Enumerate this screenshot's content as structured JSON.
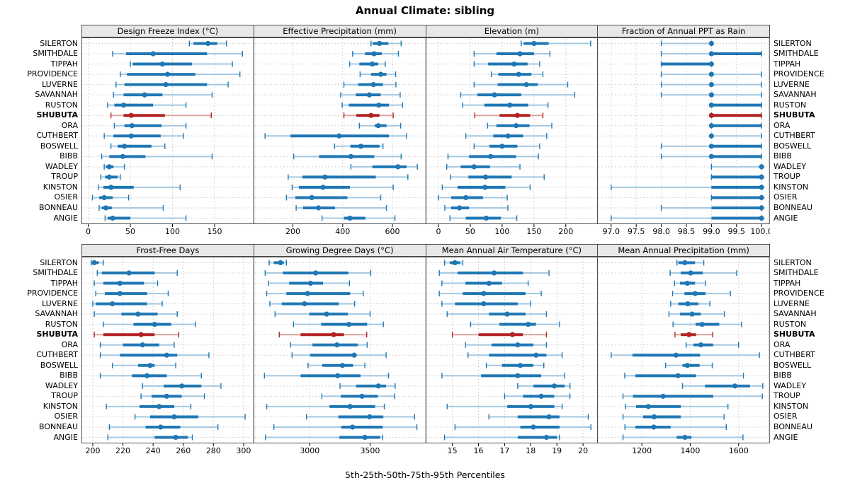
{
  "title": "Annual Climate: sibling",
  "caption": "5th-25th-50th-75th-95th Percentiles",
  "highlighted_row": "SHUBUTA",
  "locations": [
    "SILERTON",
    "SMITHDALE",
    "TIPPAH",
    "PROVIDENCE",
    "LUVERNE",
    "SAVANNAH",
    "RUSTON",
    "SHUBUTA",
    "ORA",
    "CUTHBERT",
    "BOSWELL",
    "BIBB",
    "WADLEY",
    "TROUP",
    "KINSTON",
    "OSIER",
    "BONNEAU",
    "ANGIE"
  ],
  "colors": {
    "series_blue": "#1f77b4",
    "series_blue_light": "#a5c8e1",
    "highlight_red": "#b22222",
    "highlight_red_light": "#dca49e",
    "strip_bg": "#e8e8e8",
    "panel_border": "#4d4d4d",
    "grid": "#c8c8c8",
    "background": "#ffffff"
  },
  "chart_data": {
    "type": "scatter",
    "variant": "trellis dot plot of 5-25-50-75-95 percentiles, one horizontal line per location, 2x4 panel grid, SHUBUTA highlighted in red",
    "percentiles": [
      5,
      25,
      50,
      75,
      95
    ],
    "grid": "dotted, on",
    "legend_position": "none",
    "panels": [
      {
        "title": "Design Freeze Index (°C)",
        "row": 0,
        "col": 0,
        "xlim": [
          -8,
          196
        ],
        "xticks": [
          0,
          50,
          100,
          150
        ],
        "xtick_labels": [
          "0",
          "50",
          "100",
          "150"
        ],
        "values": [
          [
            120,
            125,
            142,
            153,
            164
          ],
          [
            29,
            45,
            77,
            141,
            183
          ],
          [
            50,
            53,
            88,
            123,
            171
          ],
          [
            38,
            46,
            94,
            127,
            180
          ],
          [
            33,
            43,
            92,
            141,
            166
          ],
          [
            30,
            42,
            67,
            88,
            147
          ],
          [
            23,
            31,
            42,
            77,
            116
          ],
          [
            27,
            42,
            51,
            91,
            146
          ],
          [
            31,
            43,
            52,
            87,
            116
          ],
          [
            19,
            30,
            51,
            86,
            113
          ],
          [
            27,
            35,
            43,
            75,
            91
          ],
          [
            16,
            25,
            41,
            68,
            147
          ],
          [
            19,
            21,
            25,
            30,
            43
          ],
          [
            15,
            20,
            25,
            35,
            38
          ],
          [
            12,
            18,
            27,
            54,
            109
          ],
          [
            5,
            13,
            19,
            29,
            48
          ],
          [
            13,
            16,
            21,
            28,
            89
          ],
          [
            20,
            23,
            29,
            50,
            116
          ]
        ]
      },
      {
        "title": "Effective Precipitation (mm)",
        "row": 0,
        "col": 1,
        "xlim": [
          42,
          733
        ],
        "xticks": [
          200,
          400,
          600
        ],
        "xtick_labels": [
          "200",
          "400",
          "600"
        ],
        "values": [
          [
            514,
            521,
            548,
            584,
            635
          ],
          [
            440,
            490,
            526,
            557,
            624
          ],
          [
            428,
            467,
            519,
            543,
            571
          ],
          [
            470,
            514,
            553,
            576,
            613
          ],
          [
            405,
            462,
            524,
            562,
            614
          ],
          [
            392,
            453,
            507,
            553,
            631
          ],
          [
            398,
            425,
            545,
            586,
            641
          ],
          [
            405,
            455,
            514,
            548,
            603
          ],
          [
            467,
            529,
            543,
            576,
            633
          ],
          [
            88,
            190,
            386,
            586,
            657
          ],
          [
            367,
            431,
            473,
            548,
            562
          ],
          [
            203,
            305,
            433,
            527,
            635
          ],
          [
            433,
            519,
            622,
            657,
            700
          ],
          [
            181,
            238,
            329,
            533,
            662
          ],
          [
            197,
            224,
            321,
            429,
            603
          ],
          [
            174,
            210,
            276,
            419,
            553
          ],
          [
            213,
            241,
            303,
            369,
            576
          ],
          [
            317,
            405,
            429,
            491,
            610
          ]
        ]
      },
      {
        "title": "Elevation (m)",
        "row": 0,
        "col": 2,
        "xlim": [
          -20,
          250
        ],
        "xticks": [
          0,
          50,
          100,
          150,
          200
        ],
        "xtick_labels": [
          "0",
          "50",
          "100",
          "150",
          "200"
        ],
        "values": [
          [
            130,
            134,
            150,
            173,
            239
          ],
          [
            56,
            91,
            128,
            150,
            175
          ],
          [
            56,
            78,
            119,
            140,
            159
          ],
          [
            83,
            94,
            126,
            146,
            164
          ],
          [
            56,
            93,
            138,
            156,
            203
          ],
          [
            35,
            61,
            88,
            130,
            214
          ],
          [
            38,
            72,
            112,
            141,
            172
          ],
          [
            57,
            96,
            124,
            144,
            164
          ],
          [
            77,
            91,
            122,
            143,
            178
          ],
          [
            43,
            86,
            109,
            133,
            170
          ],
          [
            56,
            80,
            100,
            124,
            159
          ],
          [
            15,
            48,
            82,
            122,
            157
          ],
          [
            13,
            35,
            56,
            81,
            128
          ],
          [
            19,
            47,
            74,
            115,
            166
          ],
          [
            6,
            30,
            73,
            105,
            144
          ],
          [
            0,
            20,
            43,
            70,
            108
          ],
          [
            10,
            20,
            33,
            48,
            109
          ],
          [
            18,
            43,
            75,
            98,
            123
          ]
        ]
      },
      {
        "title": "Fraction of Annual PPT as Rain",
        "row": 0,
        "col": 3,
        "xlim": [
          96.72,
          100.15
        ],
        "xticks": [
          97.0,
          97.5,
          98.0,
          98.5,
          99.0,
          99.5,
          100.0
        ],
        "xtick_labels": [
          "97.0",
          "97.5",
          "98.0",
          "98.5",
          "99.0",
          "99.5",
          "100.0"
        ],
        "values": [
          [
            98,
            99,
            99,
            99,
            99
          ],
          [
            98,
            99,
            99,
            100,
            100
          ],
          [
            98,
            98,
            99,
            99,
            99
          ],
          [
            98,
            99,
            99,
            99,
            100
          ],
          [
            98,
            99,
            99,
            99,
            100
          ],
          [
            98,
            99,
            99,
            99,
            100
          ],
          [
            99,
            99,
            99,
            100,
            100
          ],
          [
            99,
            99,
            99,
            100,
            100
          ],
          [
            99,
            99,
            99,
            100,
            100
          ],
          [
            99,
            99,
            99,
            99,
            100
          ],
          [
            98,
            99,
            99,
            100,
            100
          ],
          [
            98,
            99,
            99,
            100,
            100
          ],
          [
            99,
            100,
            100,
            100,
            100
          ],
          [
            99,
            99,
            100,
            100,
            100
          ],
          [
            97,
            99,
            100,
            100,
            100
          ],
          [
            99,
            99,
            100,
            100,
            100
          ],
          [
            98,
            99,
            100,
            100,
            100
          ],
          [
            97,
            99,
            100,
            100,
            100
          ]
        ]
      },
      {
        "title": "Frost-Free Days",
        "row": 1,
        "col": 0,
        "xlim": [
          192.5,
          306.5
        ],
        "xticks": [
          200,
          220,
          240,
          260,
          280,
          300
        ],
        "xtick_labels": [
          "200",
          "220",
          "240",
          "260",
          "280",
          "300"
        ],
        "values": [
          [
            199,
            200,
            201,
            204,
            207
          ],
          [
            203,
            206,
            224,
            241,
            256
          ],
          [
            201,
            207,
            218,
            234,
            243
          ],
          [
            202,
            208,
            218,
            236,
            250
          ],
          [
            200,
            202,
            213,
            236,
            246
          ],
          [
            201,
            219,
            230,
            243,
            256
          ],
          [
            207,
            227,
            241,
            252,
            268
          ],
          [
            201,
            207,
            232,
            241,
            257
          ],
          [
            205,
            220,
            233,
            244,
            254
          ],
          [
            205,
            218,
            249,
            256,
            277
          ],
          [
            213,
            230,
            238,
            241,
            255
          ],
          [
            205,
            226,
            236,
            249,
            272
          ],
          [
            233,
            247,
            259,
            272,
            285
          ],
          [
            232,
            239,
            249,
            259,
            274
          ],
          [
            209,
            231,
            244,
            254,
            265
          ],
          [
            228,
            238,
            254,
            270,
            301
          ],
          [
            211,
            235,
            245,
            258,
            283
          ],
          [
            210,
            241,
            255,
            263,
            266
          ]
        ]
      },
      {
        "title": "Growing Degree Days (°C)",
        "row": 1,
        "col": 1,
        "xlim": [
          2534,
          3960
        ],
        "xticks": [
          3000,
          3500
        ],
        "xtick_labels": [
          "3000",
          "3500"
        ],
        "values": [
          [
            2663,
            2702,
            2757,
            2784,
            2806
          ],
          [
            2630,
            2777,
            3049,
            3320,
            3506
          ],
          [
            2657,
            2829,
            3006,
            3110,
            3329
          ],
          [
            2643,
            2806,
            2982,
            3335,
            3443
          ],
          [
            2669,
            2767,
            2957,
            3241,
            3372
          ],
          [
            2712,
            2996,
            3139,
            3316,
            3500
          ],
          [
            2865,
            3094,
            3325,
            3476,
            3610
          ],
          [
            2747,
            2924,
            3198,
            3284,
            3472
          ],
          [
            2839,
            3022,
            3225,
            3398,
            3476
          ],
          [
            2853,
            3002,
            3369,
            3384,
            3633
          ],
          [
            2986,
            3104,
            3271,
            3359,
            3457
          ],
          [
            2624,
            2924,
            3231,
            3421,
            3653
          ],
          [
            3251,
            3384,
            3569,
            3633,
            3708
          ],
          [
            3100,
            3257,
            3433,
            3565,
            3702
          ],
          [
            2643,
            3163,
            3333,
            3541,
            3618
          ],
          [
            2973,
            3237,
            3496,
            3610,
            3869
          ],
          [
            2702,
            3261,
            3355,
            3604,
            3888
          ],
          [
            2633,
            3245,
            3457,
            3584,
            3604
          ]
        ]
      },
      {
        "title": "Mean Annual Air Temperature (°C)",
        "row": 1,
        "col": 2,
        "xlim": [
          13.98,
          20.56
        ],
        "xticks": [
          15,
          16,
          17,
          18,
          19,
          20
        ],
        "xtick_labels": [
          "15",
          "16",
          "17",
          "18",
          "19",
          "20"
        ],
        "values": [
          [
            14.7,
            14.9,
            15.1,
            15.3,
            15.4
          ],
          [
            14.5,
            15.2,
            16.6,
            17.7,
            18.7
          ],
          [
            14.6,
            15.5,
            16.4,
            16.9,
            17.9
          ],
          [
            14.5,
            15.4,
            16.2,
            17.8,
            18.4
          ],
          [
            14.6,
            15.1,
            16.2,
            17.5,
            18.0
          ],
          [
            14.8,
            16.4,
            17.1,
            17.8,
            18.6
          ],
          [
            15.7,
            16.8,
            17.9,
            18.2,
            19.1
          ],
          [
            15.0,
            16.0,
            17.3,
            17.7,
            18.6
          ],
          [
            15.5,
            16.5,
            17.5,
            18.1,
            18.6
          ],
          [
            15.6,
            16.4,
            18.2,
            18.6,
            19.2
          ],
          [
            16.3,
            16.9,
            17.6,
            18.1,
            18.5
          ],
          [
            14.6,
            16.1,
            17.5,
            18.4,
            19.3
          ],
          [
            17.5,
            18.1,
            18.9,
            19.3,
            19.5
          ],
          [
            17.0,
            17.7,
            18.4,
            18.9,
            19.5
          ],
          [
            14.8,
            17.1,
            18.0,
            18.9,
            19.2
          ],
          [
            16.4,
            17.5,
            18.7,
            19.1,
            20.2
          ],
          [
            15.1,
            17.6,
            18.1,
            19.1,
            20.3
          ],
          [
            14.7,
            17.5,
            18.6,
            19.0,
            19.1
          ]
        ]
      },
      {
        "title": "Mean Annual Precipitation (mm)",
        "row": 1,
        "col": 3,
        "xlim": [
          1015,
          1726
        ],
        "xticks": [
          1200,
          1400,
          1600
        ],
        "xtick_labels": [
          "1200",
          "1400",
          "1600"
        ],
        "values": [
          [
            1345,
            1351,
            1378,
            1420,
            1456
          ],
          [
            1317,
            1361,
            1402,
            1452,
            1592
          ],
          [
            1335,
            1358,
            1388,
            1420,
            1463
          ],
          [
            1327,
            1376,
            1420,
            1463,
            1566
          ],
          [
            1319,
            1351,
            1390,
            1434,
            1481
          ],
          [
            1312,
            1358,
            1408,
            1444,
            1541
          ],
          [
            1329,
            1422,
            1449,
            1520,
            1612
          ],
          [
            1337,
            1361,
            1395,
            1424,
            1493
          ],
          [
            1383,
            1413,
            1444,
            1495,
            1600
          ],
          [
            1073,
            1161,
            1341,
            1441,
            1686
          ],
          [
            1298,
            1368,
            1388,
            1439,
            1491
          ],
          [
            1129,
            1173,
            1349,
            1424,
            1620
          ],
          [
            1368,
            1461,
            1585,
            1647,
            1700
          ],
          [
            1122,
            1163,
            1288,
            1495,
            1698
          ],
          [
            1132,
            1176,
            1227,
            1361,
            1556
          ],
          [
            1122,
            1205,
            1251,
            1361,
            1540
          ],
          [
            1130,
            1173,
            1249,
            1319,
            1549
          ],
          [
            1122,
            1344,
            1378,
            1405,
            1618
          ]
        ]
      }
    ]
  }
}
